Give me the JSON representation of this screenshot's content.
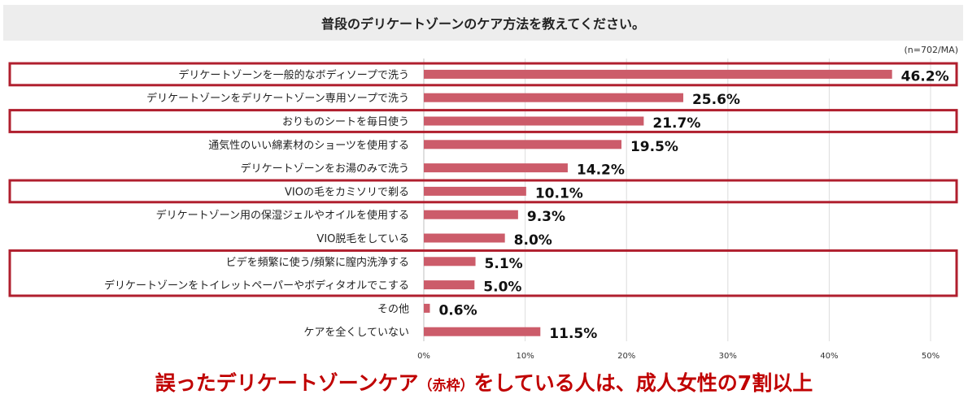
{
  "header": {
    "title": "普段のデリケートゾーンのケア方法を教えてください。",
    "sample_note": "(n=702/MA)"
  },
  "chart_data": {
    "type": "bar",
    "orientation": "horizontal",
    "title": "普段のデリケートゾーンのケア方法を教えてください。",
    "categories": [
      "デリケートゾーンを一般的なボディソープで洗う",
      "デリケートゾーンをデリケートゾーン専用ソープで洗う",
      "おりものシートを毎日使う",
      "通気性のいい綿素材のショーツを使用する",
      "デリケートゾーンをお湯のみで洗う",
      "VIOの毛をカミソリで剃る",
      "デリケートゾーン用の保湿ジェルやオイルを使用する",
      "VIO脱毛をしている",
      "ビデを頻繁に使う/頻繁に膣内洗浄する",
      "デリケートゾーンをトイレットペーパーやボディタオルでこする",
      "その他",
      "ケアを全くしていない"
    ],
    "values": [
      46.2,
      25.6,
      21.7,
      19.5,
      14.2,
      10.1,
      9.3,
      8.0,
      5.1,
      5.0,
      0.6,
      11.5
    ],
    "value_labels": [
      "46.2%",
      "25.6%",
      "21.7%",
      "19.5%",
      "14.2%",
      "10.1%",
      "9.3%",
      "8.0%",
      "5.1%",
      "5.0%",
      "0.6%",
      "11.5%"
    ],
    "xlim": [
      0,
      50
    ],
    "x_ticks": [
      0,
      10,
      20,
      30,
      40,
      50
    ],
    "x_tick_labels": [
      "0%",
      "10%",
      "20%",
      "30%",
      "40%",
      "50%"
    ],
    "grid": true,
    "highlight_groups": [
      [
        0
      ],
      [
        2
      ],
      [
        5
      ],
      [
        8,
        9
      ]
    ],
    "bar_color": "#cc5c6a",
    "highlight_color": "#b01f2e",
    "grid_color": "#dcdcdc"
  },
  "caption": {
    "part1": "誤ったデリケートゾーンケア",
    "part2": "（赤枠）",
    "part3": "をしている人は、成人女性の7割以上",
    "color": "#c00000"
  }
}
